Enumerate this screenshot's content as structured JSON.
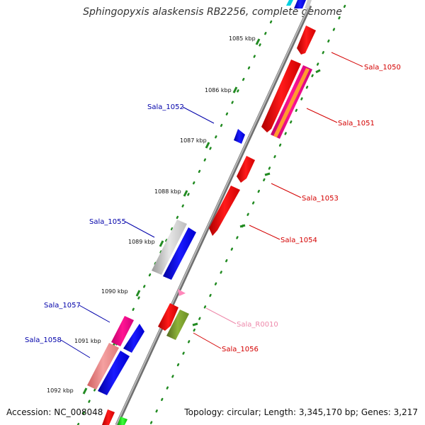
{
  "title": "Sphingopyxis alaskensis RB2256, complete genome",
  "footer": {
    "accession": "Accession: NC_008048",
    "summary": "Topology: circular; Length: 3,345,170 bp; Genes: 3,217"
  },
  "ticks": [
    "1085 kbp",
    "1086 kbp",
    "1087 kbp",
    "1088 kbp",
    "1089 kbp",
    "1090 kbp",
    "1091 kbp",
    "1092 kbp"
  ],
  "genes": {
    "sala_1050": "Sala_1050",
    "sala_1051": "Sala_1051",
    "sala_1052": "Sala_1052",
    "sala_1053": "Sala_1053",
    "sala_1054": "Sala_1054",
    "sala_1055": "Sala_1055",
    "sala_1056": "Sala_1056",
    "sala_1057": "Sala_1057",
    "sala_1058": "Sala_1058",
    "sala_r0010": "Sala_R0010"
  },
  "colors": {
    "forward_label": "#d40000",
    "reverse_label": "#0000aa",
    "rna_label": "#ee88aa",
    "cds_red": "#ff0000",
    "cds_blue": "#0000ff",
    "backbone": "#888888",
    "tick_green": "#228b22"
  }
}
